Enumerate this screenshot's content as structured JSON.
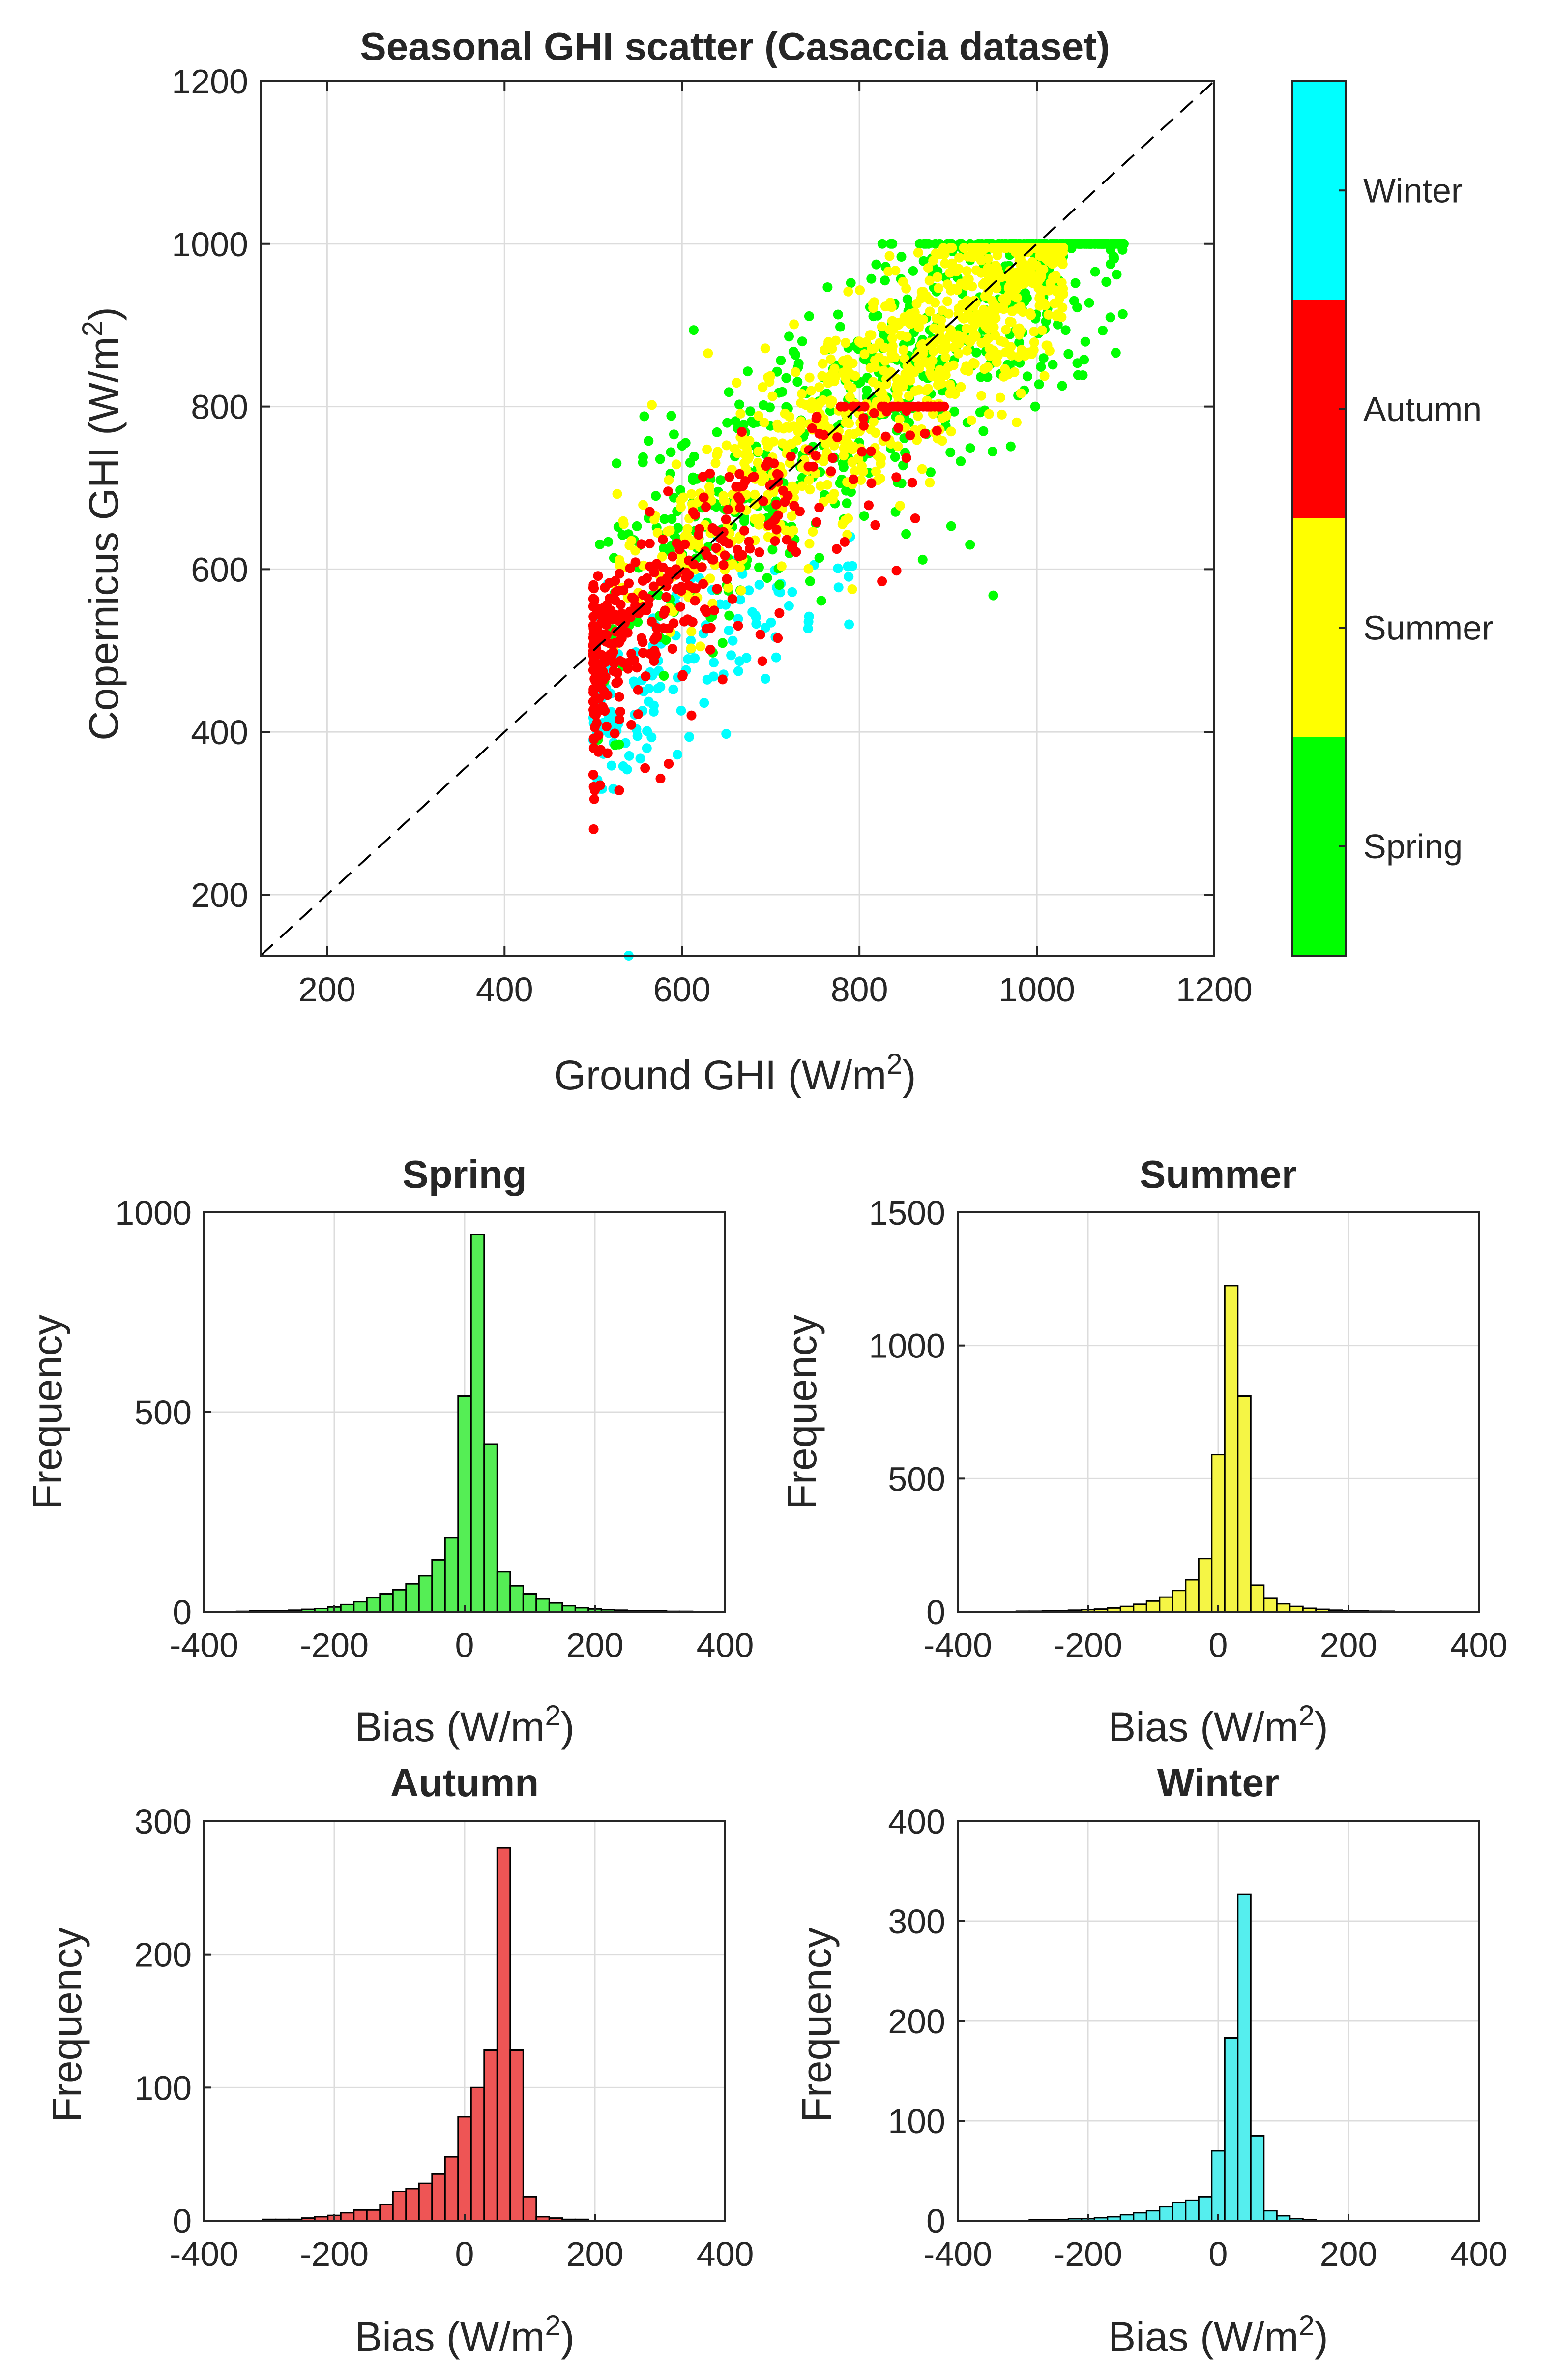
{
  "chart_data": [
    {
      "type": "scatter",
      "title": "Seasonal GHI scatter (Casaccia dataset)",
      "xlabel": "Ground GHI (W/m",
      "xlabel_sup": "2",
      "xlabel_end": ")",
      "ylabel": "Copernicus GHI (W/m",
      "ylabel_sup": "2",
      "ylabel_end": ")",
      "xlim": [
        125,
        1200
      ],
      "ylim": [
        125,
        1200
      ],
      "xticks": [
        200,
        400,
        600,
        800,
        1000,
        1200
      ],
      "yticks": [
        200,
        400,
        600,
        800,
        1000,
        1200
      ],
      "grid": true,
      "reference_line": "y = x (dashed)",
      "colorbar": {
        "labels": [
          "Winter",
          "Autumn",
          "Summer",
          "Spring"
        ],
        "colors": [
          "#00ffff",
          "#ff0000",
          "#ffff00",
          "#00ff00"
        ]
      },
      "series": [
        {
          "name": "Spring",
          "color": "#00ff00"
        },
        {
          "name": "Summer",
          "color": "#ffff00"
        },
        {
          "name": "Autumn",
          "color": "#ff0000"
        },
        {
          "name": "Winter",
          "color": "#00ffff"
        }
      ]
    },
    {
      "type": "bar",
      "title": "Spring",
      "color": "#55ee55",
      "xlabel": "Bias (W/m",
      "xlabel_sup": "2",
      "xlabel_end": ")",
      "ylabel": "Frequency",
      "xlim": [
        -400,
        400
      ],
      "ylim": [
        0,
        1000
      ],
      "xticks": [
        -400,
        -200,
        0,
        200,
        400
      ],
      "yticks": [
        0,
        500,
        1000
      ],
      "bin_start": -350,
      "bin_width": 20,
      "values": [
        1,
        2,
        2,
        3,
        4,
        6,
        8,
        12,
        18,
        25,
        35,
        45,
        55,
        70,
        90,
        130,
        185,
        540,
        945,
        420,
        100,
        65,
        45,
        32,
        22,
        15,
        10,
        7,
        5,
        4,
        3,
        2,
        2,
        1,
        1
      ]
    },
    {
      "type": "bar",
      "title": "Summer",
      "color": "#f5f545",
      "xlabel": "Bias (W/m",
      "xlabel_sup": "2",
      "xlabel_end": ")",
      "ylabel": "Frequency",
      "xlim": [
        -400,
        400
      ],
      "ylim": [
        0,
        1500
      ],
      "xticks": [
        -400,
        -200,
        0,
        200,
        400
      ],
      "yticks": [
        0,
        500,
        1000,
        1500
      ],
      "bin_start": -350,
      "bin_width": 20,
      "values": [
        1,
        1,
        2,
        2,
        3,
        4,
        6,
        8,
        10,
        14,
        20,
        28,
        40,
        55,
        80,
        120,
        200,
        590,
        1225,
        810,
        100,
        50,
        30,
        20,
        13,
        9,
        6,
        4,
        3,
        2,
        2,
        1,
        1,
        1,
        0
      ]
    },
    {
      "type": "bar",
      "title": "Autumn",
      "color": "#ee5555",
      "xlabel": "Bias (W/m",
      "xlabel_sup": "2",
      "xlabel_end": ")",
      "ylabel": "Frequency",
      "xlim": [
        -400,
        400
      ],
      "ylim": [
        0,
        300
      ],
      "xticks": [
        -400,
        -200,
        0,
        200,
        400
      ],
      "yticks": [
        0,
        100,
        200,
        300
      ],
      "bin_start": -350,
      "bin_width": 20,
      "values": [
        0,
        0,
        1,
        1,
        1,
        2,
        3,
        4,
        6,
        8,
        8,
        12,
        22,
        24,
        28,
        35,
        48,
        78,
        100,
        128,
        280,
        128,
        18,
        3,
        2,
        1,
        1,
        0,
        0,
        0,
        0,
        0,
        0,
        0,
        0
      ]
    },
    {
      "type": "bar",
      "title": "Winter",
      "color": "#55eeee",
      "xlabel": "Bias (W/m",
      "xlabel_sup": "2",
      "xlabel_end": ")",
      "ylabel": "Frequency",
      "xlim": [
        -400,
        400
      ],
      "ylim": [
        0,
        400
      ],
      "xticks": [
        -400,
        -200,
        0,
        200,
        400
      ],
      "yticks": [
        0,
        100,
        200,
        300,
        400
      ],
      "bin_start": -350,
      "bin_width": 20,
      "values": [
        0,
        0,
        0,
        1,
        1,
        1,
        2,
        2,
        3,
        4,
        6,
        8,
        10,
        14,
        18,
        20,
        24,
        70,
        183,
        327,
        85,
        10,
        5,
        2,
        1,
        0,
        0,
        0,
        0,
        0,
        0,
        0,
        0,
        0,
        0
      ]
    }
  ]
}
